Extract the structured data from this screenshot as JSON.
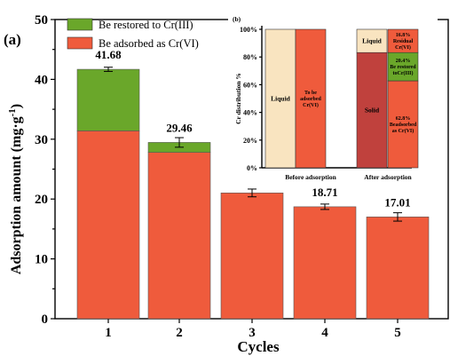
{
  "chart_data": [
    {
      "type": "bar",
      "stacked": true,
      "panel_label": "(a)",
      "xlabel": "Cycles",
      "ylabel": "Adsorption amount (mg·g",
      "ylabel_sup": "-1",
      "ylabel_close": ")",
      "ylim": [
        0,
        50
      ],
      "yticks": [
        "0",
        "10",
        "20",
        "30",
        "40",
        "50"
      ],
      "categories": [
        "1",
        "2",
        "3",
        "4",
        "5"
      ],
      "series": [
        {
          "name": "Be adsorbed as Cr(VI)",
          "values": [
            31.4,
            27.8,
            21.02,
            18.71,
            17.01
          ],
          "color": "#ef5b3c"
        },
        {
          "name": "Be restored to Cr(III)",
          "values": [
            10.28,
            1.66,
            0,
            0,
            0
          ],
          "color": "#6aa72a"
        }
      ],
      "totals": [
        41.68,
        29.46,
        21.02,
        18.71,
        17.01
      ],
      "total_labels": [
        "41.68",
        "29.46",
        "21.02",
        "18.71",
        "17.01"
      ],
      "errors": [
        0.35,
        0.8,
        0.65,
        0.45,
        0.7
      ],
      "legend": {
        "position": "top-left"
      },
      "grid": false
    },
    {
      "type": "bar",
      "stacked": true,
      "panel_label": "(b)",
      "ylabel": "Cr distribution %",
      "ylim": [
        0,
        100
      ],
      "yticks": [
        "0%",
        "20%",
        "40%",
        "60%",
        "80%",
        "100%"
      ],
      "groups": [
        {
          "label": "Before adsorption",
          "bars": [
            {
              "segments": [
                {
                  "label": "Liquid",
                  "value": 100,
                  "color": "#f9e4c0"
                }
              ]
            },
            {
              "segments": [
                {
                  "label": "To be adsorbed Cr(VI)",
                  "value": 100,
                  "color": "#ef5b3c"
                }
              ]
            }
          ]
        },
        {
          "label": "After adsorption",
          "bars": [
            {
              "segments": [
                {
                  "label": "Solid",
                  "value": 83.2,
                  "color": "#c0413d"
                },
                {
                  "label": "Liquid",
                  "value": 16.8,
                  "color": "#f9e4c0"
                }
              ]
            },
            {
              "segments": [
                {
                  "label": "62.8% Beadsorbed as Cr(VI)",
                  "value": 62.8,
                  "color": "#ef5b3c"
                },
                {
                  "label": "20.4% Be restored toCr(III)",
                  "value": 20.4,
                  "color": "#6aa72a"
                },
                {
                  "label": "16.8% Residual Cr(VI)",
                  "value": 16.8,
                  "color": "#ef5b3c"
                }
              ]
            }
          ]
        }
      ]
    }
  ]
}
